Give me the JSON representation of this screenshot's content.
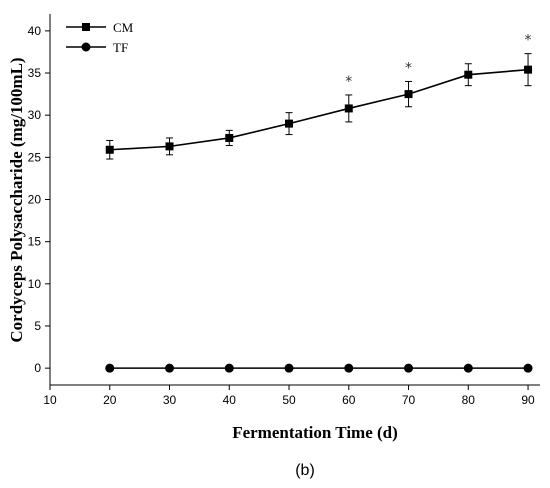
{
  "chart_data": {
    "type": "line",
    "xlabel": "Fermentation Time (d)",
    "ylabel": "Cordyceps Polysaccharide (mg/100mL)",
    "xlim": [
      10,
      92
    ],
    "ylim": [
      -2,
      42
    ],
    "x_ticks": [
      10,
      20,
      30,
      40,
      50,
      60,
      70,
      80,
      90
    ],
    "y_ticks": [
      0,
      5,
      10,
      15,
      20,
      25,
      30,
      35,
      40
    ],
    "x": [
      20,
      30,
      40,
      50,
      60,
      70,
      80,
      90
    ],
    "series": [
      {
        "name": "CM",
        "marker": "square",
        "values": [
          25.9,
          26.3,
          27.3,
          29.0,
          30.8,
          32.5,
          34.8,
          35.4
        ],
        "errors": [
          1.1,
          1.0,
          0.9,
          1.3,
          1.6,
          1.5,
          1.3,
          1.9
        ]
      },
      {
        "name": "TF",
        "marker": "circle",
        "values": [
          0,
          0,
          0,
          0,
          0,
          0,
          0,
          0
        ],
        "errors": [
          0,
          0,
          0,
          0,
          0,
          0,
          0,
          0
        ]
      }
    ],
    "significance_marks": [
      {
        "x": 60,
        "label": "*"
      },
      {
        "x": 70,
        "label": "*"
      },
      {
        "x": 90,
        "label": "*"
      }
    ],
    "legend": "top-left",
    "grid": false
  },
  "caption": "(b)"
}
